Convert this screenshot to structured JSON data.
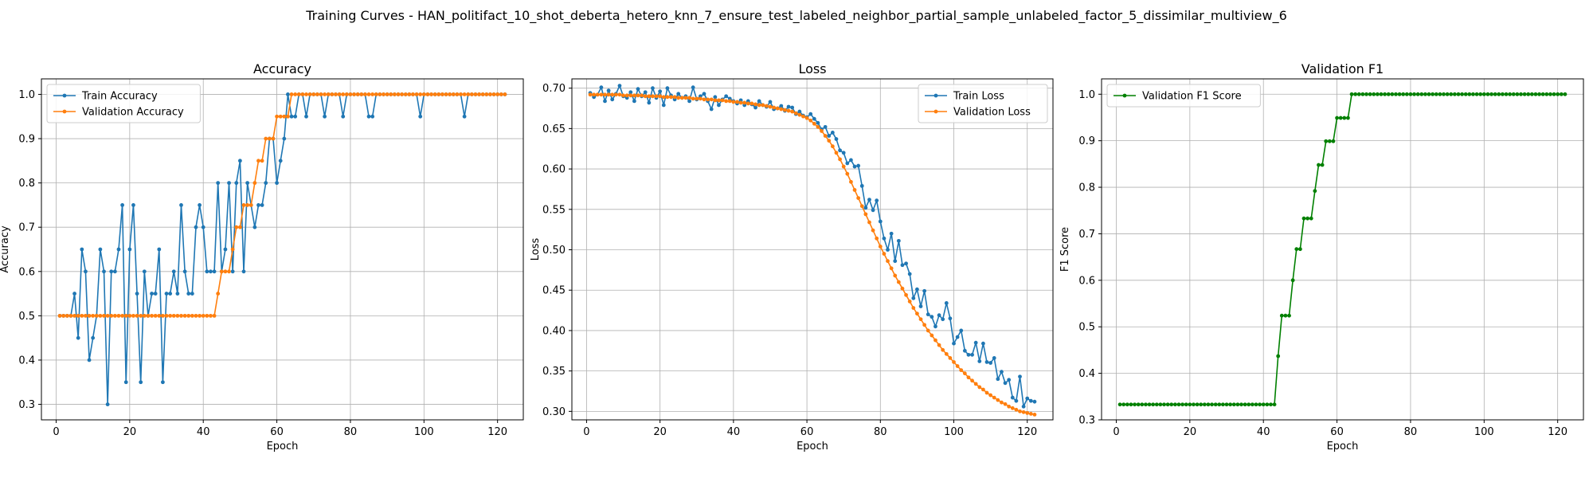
{
  "figure": {
    "suptitle": "Training Curves - HAN_politifact_10_shot_deberta_hetero_knn_7_ensure_test_labeled_neighbor_partial_sample_unlabeled_factor_5_dissimilar_multiview_6"
  },
  "chart_data": [
    {
      "type": "line",
      "title": "Accuracy",
      "xlabel": "Epoch",
      "ylabel": "Accuracy",
      "xlim": [
        -4,
        127
      ],
      "ylim": [
        0.265,
        1.035
      ],
      "xticks": [
        0,
        20,
        40,
        60,
        80,
        100,
        120
      ],
      "yticks": [
        0.3,
        0.4,
        0.5,
        0.6,
        0.7,
        0.8,
        0.9,
        1.0
      ],
      "ytick_labels": [
        "0.3",
        "0.4",
        "0.5",
        "0.6",
        "0.7",
        "0.8",
        "0.9",
        "1.0"
      ],
      "grid": true,
      "legend_position": "upper left",
      "x": [
        1,
        2,
        3,
        4,
        5,
        6,
        7,
        8,
        9,
        10,
        11,
        12,
        13,
        14,
        15,
        16,
        17,
        18,
        19,
        20,
        21,
        22,
        23,
        24,
        25,
        26,
        27,
        28,
        29,
        30,
        31,
        32,
        33,
        34,
        35,
        36,
        37,
        38,
        39,
        40,
        41,
        42,
        43,
        44,
        45,
        46,
        47,
        48,
        49,
        50,
        51,
        52,
        53,
        54,
        55,
        56,
        57,
        58,
        59,
        60,
        61,
        62,
        63,
        64,
        65,
        66,
        67,
        68,
        69,
        70,
        71,
        72,
        73,
        74,
        75,
        76,
        77,
        78,
        79,
        80,
        81,
        82,
        83,
        84,
        85,
        86,
        87,
        88,
        89,
        90,
        91,
        92,
        93,
        94,
        95,
        96,
        97,
        98,
        99,
        100,
        101,
        102,
        103,
        104,
        105,
        106,
        107,
        108,
        109,
        110,
        111,
        112,
        113,
        114,
        115,
        116,
        117,
        118,
        119,
        120,
        121,
        122
      ],
      "series": [
        {
          "name": "Train Accuracy",
          "color": "#1f77b4",
          "values": [
            0.5,
            0.5,
            0.5,
            0.5,
            0.55,
            0.45,
            0.65,
            0.6,
            0.4,
            0.45,
            0.5,
            0.65,
            0.6,
            0.3,
            0.6,
            0.6,
            0.65,
            0.75,
            0.35,
            0.65,
            0.75,
            0.55,
            0.35,
            0.6,
            0.5,
            0.55,
            0.55,
            0.65,
            0.35,
            0.55,
            0.55,
            0.6,
            0.55,
            0.75,
            0.6,
            0.55,
            0.55,
            0.7,
            0.75,
            0.7,
            0.6,
            0.6,
            0.6,
            0.8,
            0.6,
            0.65,
            0.8,
            0.6,
            0.8,
            0.85,
            0.6,
            0.8,
            0.75,
            0.7,
            0.75,
            0.75,
            0.8,
            0.9,
            0.9,
            0.8,
            0.85,
            0.9,
            1.0,
            0.95,
            0.95,
            1.0,
            1.0,
            0.95,
            1.0,
            1.0,
            1.0,
            1.0,
            0.95,
            1.0,
            1.0,
            1.0,
            1.0,
            0.95,
            1.0,
            1.0,
            1.0,
            1.0,
            1.0,
            1.0,
            0.95,
            0.95,
            1.0,
            1.0,
            1.0,
            1.0,
            1.0,
            1.0,
            1.0,
            1.0,
            1.0,
            1.0,
            1.0,
            1.0,
            0.95,
            1.0,
            1.0,
            1.0,
            1.0,
            1.0,
            1.0,
            1.0,
            1.0,
            1.0,
            1.0,
            1.0,
            0.95,
            1.0,
            1.0,
            1.0,
            1.0,
            1.0,
            1.0,
            1.0,
            1.0,
            1.0,
            1.0,
            1.0
          ]
        },
        {
          "name": "Validation Accuracy",
          "color": "#ff7f0e",
          "values": [
            0.5,
            0.5,
            0.5,
            0.5,
            0.5,
            0.5,
            0.5,
            0.5,
            0.5,
            0.5,
            0.5,
            0.5,
            0.5,
            0.5,
            0.5,
            0.5,
            0.5,
            0.5,
            0.5,
            0.5,
            0.5,
            0.5,
            0.5,
            0.5,
            0.5,
            0.5,
            0.5,
            0.5,
            0.5,
            0.5,
            0.5,
            0.5,
            0.5,
            0.5,
            0.5,
            0.5,
            0.5,
            0.5,
            0.5,
            0.5,
            0.5,
            0.5,
            0.5,
            0.55,
            0.6,
            0.6,
            0.6,
            0.65,
            0.7,
            0.7,
            0.75,
            0.75,
            0.75,
            0.8,
            0.85,
            0.85,
            0.9,
            0.9,
            0.9,
            0.95,
            0.95,
            0.95,
            0.95,
            1.0,
            1.0,
            1.0,
            1.0,
            1.0,
            1.0,
            1.0,
            1.0,
            1.0,
            1.0,
            1.0,
            1.0,
            1.0,
            1.0,
            1.0,
            1.0,
            1.0,
            1.0,
            1.0,
            1.0,
            1.0,
            1.0,
            1.0,
            1.0,
            1.0,
            1.0,
            1.0,
            1.0,
            1.0,
            1.0,
            1.0,
            1.0,
            1.0,
            1.0,
            1.0,
            1.0,
            1.0,
            1.0,
            1.0,
            1.0,
            1.0,
            1.0,
            1.0,
            1.0,
            1.0,
            1.0,
            1.0,
            1.0,
            1.0,
            1.0,
            1.0,
            1.0,
            1.0,
            1.0,
            1.0,
            1.0,
            1.0,
            1.0,
            1.0
          ]
        }
      ]
    },
    {
      "type": "line",
      "title": "Loss",
      "xlabel": "Epoch",
      "ylabel": "Loss",
      "xlim": [
        -4,
        127
      ],
      "ylim": [
        0.2895,
        0.7115
      ],
      "xticks": [
        0,
        20,
        40,
        60,
        80,
        100,
        120
      ],
      "yticks": [
        0.3,
        0.35,
        0.4,
        0.45,
        0.5,
        0.55,
        0.6,
        0.65,
        0.7
      ],
      "ytick_labels": [
        "0.30",
        "0.35",
        "0.40",
        "0.45",
        "0.50",
        "0.55",
        "0.60",
        "0.65",
        "0.70"
      ],
      "grid": true,
      "legend_position": "upper right",
      "x": [
        1,
        2,
        3,
        4,
        5,
        6,
        7,
        8,
        9,
        10,
        11,
        12,
        13,
        14,
        15,
        16,
        17,
        18,
        19,
        20,
        21,
        22,
        23,
        24,
        25,
        26,
        27,
        28,
        29,
        30,
        31,
        32,
        33,
        34,
        35,
        36,
        37,
        38,
        39,
        40,
        41,
        42,
        43,
        44,
        45,
        46,
        47,
        48,
        49,
        50,
        51,
        52,
        53,
        54,
        55,
        56,
        57,
        58,
        59,
        60,
        61,
        62,
        63,
        64,
        65,
        66,
        67,
        68,
        69,
        70,
        71,
        72,
        73,
        74,
        75,
        76,
        77,
        78,
        79,
        80,
        81,
        82,
        83,
        84,
        85,
        86,
        87,
        88,
        89,
        90,
        91,
        92,
        93,
        94,
        95,
        96,
        97,
        98,
        99,
        100,
        101,
        102,
        103,
        104,
        105,
        106,
        107,
        108,
        109,
        110,
        111,
        112,
        113,
        114,
        115,
        116,
        117,
        118,
        119,
        120,
        121,
        122
      ],
      "series": [
        {
          "name": "Train Loss",
          "color": "#1f77b4",
          "values": [
            0.694,
            0.689,
            0.692,
            0.701,
            0.684,
            0.697,
            0.686,
            0.693,
            0.703,
            0.69,
            0.688,
            0.695,
            0.684,
            0.699,
            0.69,
            0.695,
            0.682,
            0.7,
            0.688,
            0.696,
            0.679,
            0.7,
            0.691,
            0.686,
            0.693,
            0.688,
            0.69,
            0.684,
            0.701,
            0.686,
            0.69,
            0.693,
            0.684,
            0.674,
            0.689,
            0.679,
            0.686,
            0.69,
            0.687,
            0.684,
            0.681,
            0.685,
            0.679,
            0.684,
            0.68,
            0.676,
            0.684,
            0.679,
            0.677,
            0.683,
            0.674,
            0.675,
            0.678,
            0.672,
            0.677,
            0.676,
            0.668,
            0.671,
            0.666,
            0.664,
            0.668,
            0.662,
            0.657,
            0.649,
            0.652,
            0.641,
            0.645,
            0.637,
            0.623,
            0.62,
            0.607,
            0.611,
            0.603,
            0.604,
            0.579,
            0.552,
            0.562,
            0.549,
            0.561,
            0.535,
            0.514,
            0.5,
            0.52,
            0.486,
            0.511,
            0.481,
            0.483,
            0.47,
            0.44,
            0.451,
            0.43,
            0.449,
            0.42,
            0.417,
            0.405,
            0.419,
            0.414,
            0.434,
            0.415,
            0.384,
            0.392,
            0.4,
            0.375,
            0.37,
            0.37,
            0.385,
            0.362,
            0.384,
            0.361,
            0.36,
            0.366,
            0.34,
            0.349,
            0.335,
            0.339,
            0.317,
            0.313,
            0.343,
            0.306,
            0.316,
            0.313,
            0.312
          ]
        },
        {
          "name": "Validation Loss",
          "color": "#ff7f0e",
          "values": [
            0.692,
            0.692,
            0.692,
            0.692,
            0.692,
            0.692,
            0.692,
            0.692,
            0.692,
            0.691,
            0.691,
            0.691,
            0.691,
            0.691,
            0.691,
            0.69,
            0.69,
            0.69,
            0.69,
            0.69,
            0.689,
            0.689,
            0.689,
            0.689,
            0.688,
            0.688,
            0.688,
            0.688,
            0.687,
            0.687,
            0.687,
            0.686,
            0.686,
            0.686,
            0.685,
            0.685,
            0.685,
            0.684,
            0.684,
            0.683,
            0.683,
            0.682,
            0.682,
            0.681,
            0.681,
            0.68,
            0.679,
            0.679,
            0.678,
            0.677,
            0.676,
            0.675,
            0.674,
            0.673,
            0.672,
            0.671,
            0.669,
            0.667,
            0.665,
            0.663,
            0.66,
            0.656,
            0.652,
            0.647,
            0.641,
            0.635,
            0.628,
            0.62,
            0.612,
            0.603,
            0.594,
            0.584,
            0.574,
            0.564,
            0.554,
            0.544,
            0.534,
            0.524,
            0.514,
            0.504,
            0.495,
            0.486,
            0.477,
            0.468,
            0.46,
            0.452,
            0.444,
            0.436,
            0.428,
            0.421,
            0.414,
            0.407,
            0.4,
            0.394,
            0.388,
            0.382,
            0.376,
            0.371,
            0.366,
            0.361,
            0.356,
            0.351,
            0.347,
            0.342,
            0.338,
            0.334,
            0.33,
            0.327,
            0.323,
            0.32,
            0.317,
            0.314,
            0.311,
            0.309,
            0.306,
            0.304,
            0.302,
            0.3,
            0.299,
            0.298,
            0.297,
            0.296
          ]
        }
      ]
    },
    {
      "type": "line",
      "title": "Validation F1",
      "xlabel": "Epoch",
      "ylabel": "F1 Score",
      "xlim": [
        -4,
        127
      ],
      "ylim": [
        0.3,
        1.033
      ],
      "xticks": [
        0,
        20,
        40,
        60,
        80,
        100,
        120
      ],
      "yticks": [
        0.3,
        0.4,
        0.5,
        0.6,
        0.7,
        0.8,
        0.9,
        1.0
      ],
      "ytick_labels": [
        "0.3",
        "0.4",
        "0.5",
        "0.6",
        "0.7",
        "0.8",
        "0.9",
        "1.0"
      ],
      "grid": true,
      "legend_position": "upper left",
      "x": [
        1,
        2,
        3,
        4,
        5,
        6,
        7,
        8,
        9,
        10,
        11,
        12,
        13,
        14,
        15,
        16,
        17,
        18,
        19,
        20,
        21,
        22,
        23,
        24,
        25,
        26,
        27,
        28,
        29,
        30,
        31,
        32,
        33,
        34,
        35,
        36,
        37,
        38,
        39,
        40,
        41,
        42,
        43,
        44,
        45,
        46,
        47,
        48,
        49,
        50,
        51,
        52,
        53,
        54,
        55,
        56,
        57,
        58,
        59,
        60,
        61,
        62,
        63,
        64,
        65,
        66,
        67,
        68,
        69,
        70,
        71,
        72,
        73,
        74,
        75,
        76,
        77,
        78,
        79,
        80,
        81,
        82,
        83,
        84,
        85,
        86,
        87,
        88,
        89,
        90,
        91,
        92,
        93,
        94,
        95,
        96,
        97,
        98,
        99,
        100,
        101,
        102,
        103,
        104,
        105,
        106,
        107,
        108,
        109,
        110,
        111,
        112,
        113,
        114,
        115,
        116,
        117,
        118,
        119,
        120,
        121,
        122
      ],
      "series": [
        {
          "name": "Validation F1 Score",
          "color": "#008000",
          "values": [
            0.333,
            0.333,
            0.333,
            0.333,
            0.333,
            0.333,
            0.333,
            0.333,
            0.333,
            0.333,
            0.333,
            0.333,
            0.333,
            0.333,
            0.333,
            0.333,
            0.333,
            0.333,
            0.333,
            0.333,
            0.333,
            0.333,
            0.333,
            0.333,
            0.333,
            0.333,
            0.333,
            0.333,
            0.333,
            0.333,
            0.333,
            0.333,
            0.333,
            0.333,
            0.333,
            0.333,
            0.333,
            0.333,
            0.333,
            0.333,
            0.333,
            0.333,
            0.333,
            0.437,
            0.524,
            0.524,
            0.524,
            0.6,
            0.667,
            0.667,
            0.733,
            0.733,
            0.733,
            0.792,
            0.848,
            0.848,
            0.899,
            0.899,
            0.899,
            0.949,
            0.949,
            0.949,
            0.949,
            1.0,
            1.0,
            1.0,
            1.0,
            1.0,
            1.0,
            1.0,
            1.0,
            1.0,
            1.0,
            1.0,
            1.0,
            1.0,
            1.0,
            1.0,
            1.0,
            1.0,
            1.0,
            1.0,
            1.0,
            1.0,
            1.0,
            1.0,
            1.0,
            1.0,
            1.0,
            1.0,
            1.0,
            1.0,
            1.0,
            1.0,
            1.0,
            1.0,
            1.0,
            1.0,
            1.0,
            1.0,
            1.0,
            1.0,
            1.0,
            1.0,
            1.0,
            1.0,
            1.0,
            1.0,
            1.0,
            1.0,
            1.0,
            1.0,
            1.0,
            1.0,
            1.0,
            1.0,
            1.0,
            1.0,
            1.0,
            1.0,
            1.0,
            1.0
          ]
        }
      ]
    }
  ]
}
